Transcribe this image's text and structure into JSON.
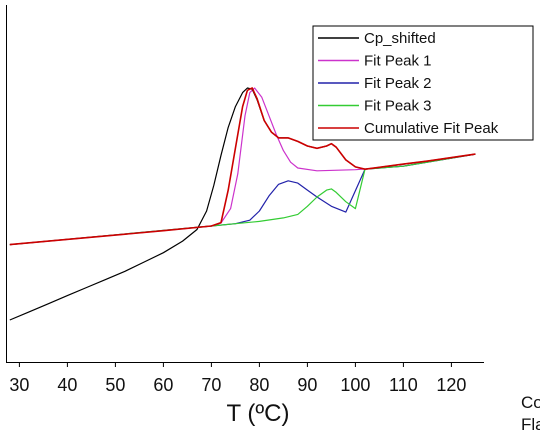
{
  "chart_data": {
    "type": "line",
    "xlabel": "T (ºC)",
    "ylabel": "",
    "xlim": [
      27,
      127
    ],
    "ylim": [
      0,
      100
    ],
    "x_ticks": [
      30,
      40,
      50,
      60,
      70,
      80,
      90,
      100,
      110,
      120
    ],
    "legend_position": "top-right",
    "series": [
      {
        "name": "Cp_shifted",
        "color": "#000000",
        "x": [
          28,
          32,
          36,
          40,
          44,
          48,
          52,
          56,
          60,
          64,
          67,
          69,
          70.5,
          72,
          73.5,
          75,
          76.5,
          77.5,
          78.5,
          79.5,
          81,
          82.5,
          84,
          86,
          88,
          90,
          92,
          94,
          95,
          96,
          98,
          100,
          102,
          105,
          110,
          115,
          120,
          125
        ],
        "y": [
          0,
          3.5,
          7,
          10.5,
          14,
          17.5,
          21,
          25,
          29,
          34,
          39,
          47,
          58,
          71,
          83,
          92,
          98,
          100,
          99.5,
          95,
          86,
          81,
          78.5,
          78.5,
          77,
          75,
          74,
          75,
          76,
          74.5,
          69,
          66,
          65,
          65.8,
          67.2,
          68.5,
          70,
          71.5
        ]
      },
      {
        "name": "Fit Peak 1",
        "color": "#cc33cc",
        "x": [
          28,
          60,
          70,
          72,
          74,
          75.5,
          77,
          78,
          79,
          80.5,
          82,
          83.5,
          85,
          86.5,
          88,
          92,
          100,
          110,
          125
        ],
        "y": [
          32.5,
          38.5,
          40.5,
          41.8,
          48,
          63,
          88,
          98,
          100,
          96,
          88,
          80,
          73,
          68,
          65.5,
          64.3,
          64.8,
          66.3,
          71.5
        ]
      },
      {
        "name": "Fit Peak 2",
        "color": "#2222aa",
        "x": [
          28,
          70,
          75,
          78,
          80,
          82,
          84,
          86,
          88,
          90,
          92,
          95,
          98,
          102,
          110,
          125
        ],
        "y": [
          32.5,
          40.5,
          41.5,
          43,
          47,
          53.5,
          58.5,
          60,
          59,
          56,
          53,
          49,
          46.5,
          65,
          66.3,
          71.5
        ]
      },
      {
        "name": "Fit Peak 3",
        "color": "#33cc33",
        "x": [
          28,
          70,
          75,
          80,
          85,
          88,
          90,
          92,
          94,
          95,
          96,
          98,
          100,
          102,
          110,
          125
        ],
        "y": [
          32.5,
          40.5,
          41.5,
          42.5,
          44,
          45.5,
          49,
          53,
          56,
          56.5,
          55,
          51,
          48,
          65,
          66.3,
          71.5
        ]
      },
      {
        "name": "Cumulative Fit Peak",
        "color": "#cc0000",
        "x": [
          28,
          60,
          70,
          72,
          73.5,
          75,
          76.5,
          77.5,
          78.5,
          79.5,
          81,
          82.5,
          84,
          86,
          88,
          90,
          92,
          94,
          95,
          96,
          98,
          100,
          102,
          105,
          110,
          115,
          120,
          125
        ],
        "y": [
          32.5,
          38.5,
          40.5,
          42,
          56,
          74,
          92,
          99,
          100,
          95.5,
          86,
          81,
          78.5,
          78.5,
          77,
          75,
          74,
          75,
          76,
          74.5,
          69,
          66,
          65,
          65.8,
          67.2,
          68.5,
          70,
          71.5
        ]
      }
    ]
  },
  "side_text": [
    "Co",
    "Fla"
  ]
}
